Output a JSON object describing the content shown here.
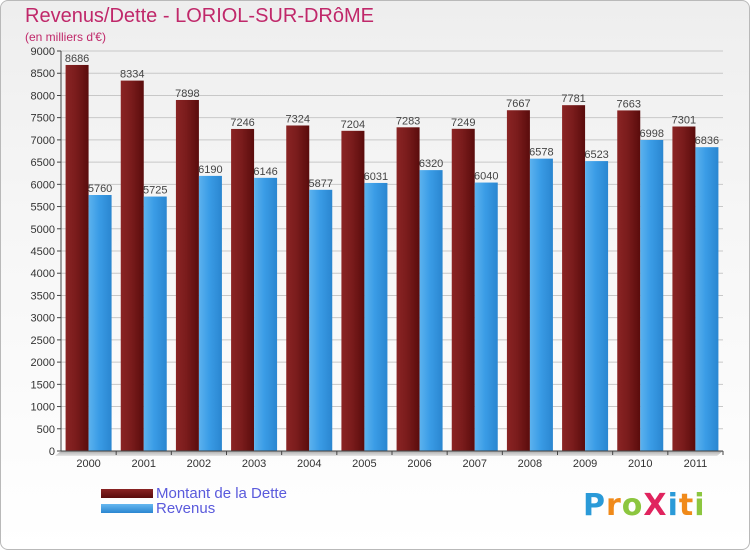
{
  "title": "Revenus/Dette - LORIOL-SUR-DRôME",
  "subtitle": "(en milliers d'€)",
  "logo": {
    "text": "ProXiti",
    "letter_colors": [
      "#2a9ad8",
      "#f08a1a",
      "#8cc63f",
      "#e0245e",
      "#2a9ad8",
      "#f08a1a",
      "#8cc63f"
    ]
  },
  "colors": {
    "dette": "#6e1414",
    "dette_light": "#9a3535",
    "revenus": "#3399e6",
    "revenus_light": "#66b8f0",
    "axis": "#444444",
    "grid": "#c8c8c8",
    "title": "#c0286a",
    "legend_text": "#5a5adc"
  },
  "chart_data": {
    "type": "bar",
    "title": "Revenus/Dette - LORIOL-SUR-DRôME",
    "ylabel": "(en milliers d'€)",
    "categories": [
      "2000",
      "2001",
      "2002",
      "2003",
      "2004",
      "2005",
      "2006",
      "2007",
      "2008",
      "2009",
      "2010",
      "2011"
    ],
    "series": [
      {
        "name": "Montant de la Dette",
        "values": [
          8686,
          8334,
          7898,
          7246,
          7324,
          7204,
          7283,
          7249,
          7667,
          7781,
          7663,
          7301
        ]
      },
      {
        "name": "Revenus",
        "values": [
          5760,
          5725,
          6190,
          6146,
          5877,
          6031,
          6320,
          6040,
          6578,
          6523,
          6998,
          6836
        ]
      }
    ],
    "ylim": [
      0,
      9000
    ],
    "ytick_step": 500,
    "grid": true,
    "legend": "bottom-left"
  }
}
